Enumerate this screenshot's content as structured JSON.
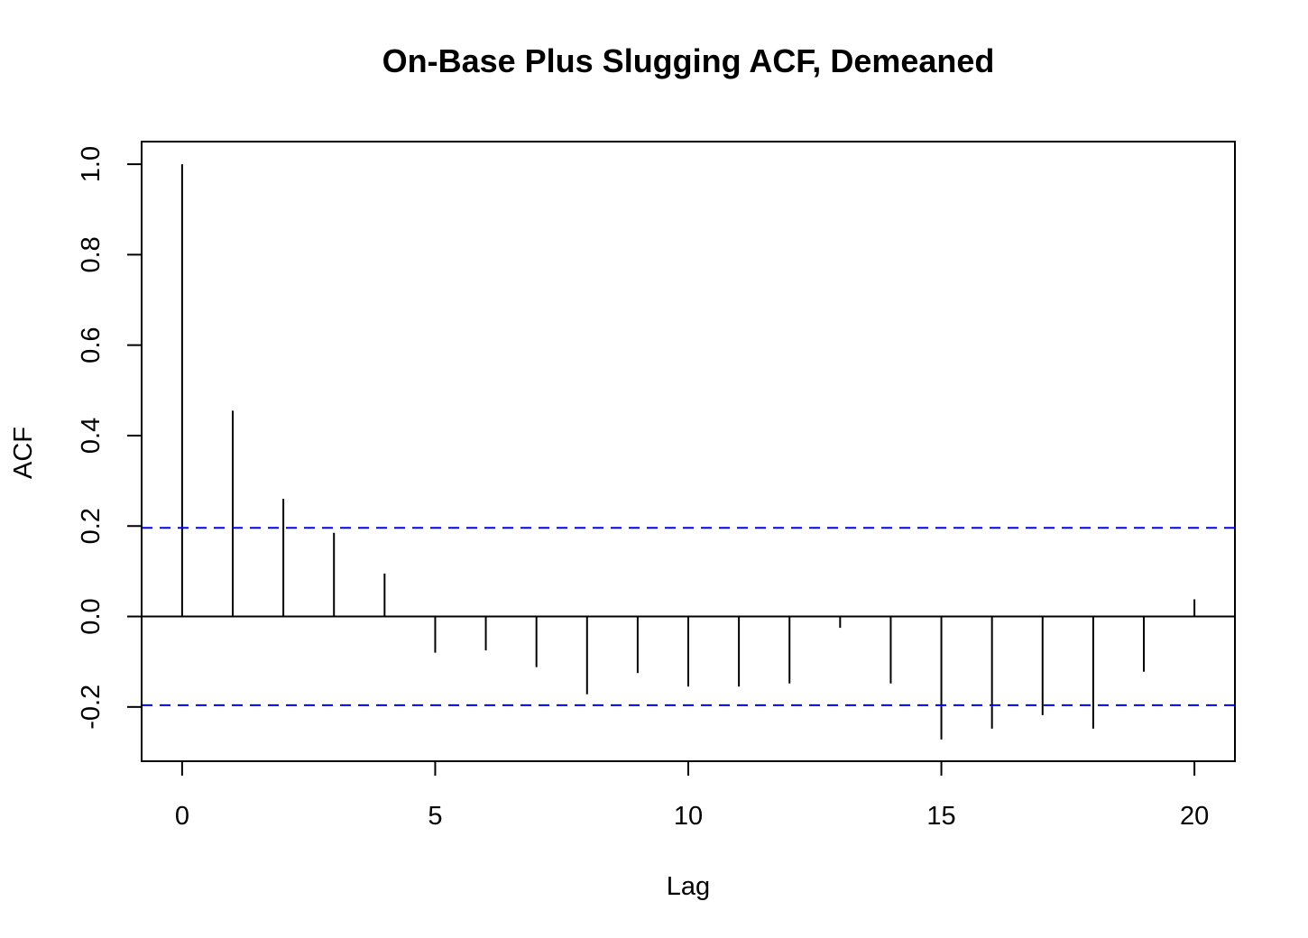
{
  "chart_data": {
    "type": "bar",
    "title": "On-Base Plus Slugging ACF, Demeaned",
    "xlabel": "Lag",
    "ylabel": "ACF",
    "xlim": [
      -0.8,
      20.8
    ],
    "ylim": [
      -0.32,
      1.05
    ],
    "x_ticks": [
      0,
      5,
      10,
      15,
      20
    ],
    "x_tick_labels": [
      "0",
      "5",
      "10",
      "15",
      "20"
    ],
    "y_ticks": [
      -0.2,
      0.0,
      0.2,
      0.4,
      0.6,
      0.8,
      1.0
    ],
    "y_tick_labels": [
      "-0.2",
      "0.0",
      "0.2",
      "0.4",
      "0.6",
      "0.8",
      "1.0"
    ],
    "lags": [
      0,
      1,
      2,
      3,
      4,
      5,
      6,
      7,
      8,
      9,
      10,
      11,
      12,
      13,
      14,
      15,
      16,
      17,
      18,
      19,
      20
    ],
    "values": [
      1.0,
      0.455,
      0.26,
      0.185,
      0.095,
      -0.08,
      -0.075,
      -0.112,
      -0.172,
      -0.125,
      -0.155,
      -0.155,
      -0.148,
      -0.025,
      -0.148,
      -0.272,
      -0.248,
      -0.218,
      -0.248,
      -0.122,
      0.038
    ],
    "confidence_bound": 0.196,
    "zero_line": true,
    "grid": false,
    "legend": "none",
    "colors": {
      "spikes": "#000000",
      "confidence": "#0000ff",
      "axes": "#000000"
    }
  }
}
